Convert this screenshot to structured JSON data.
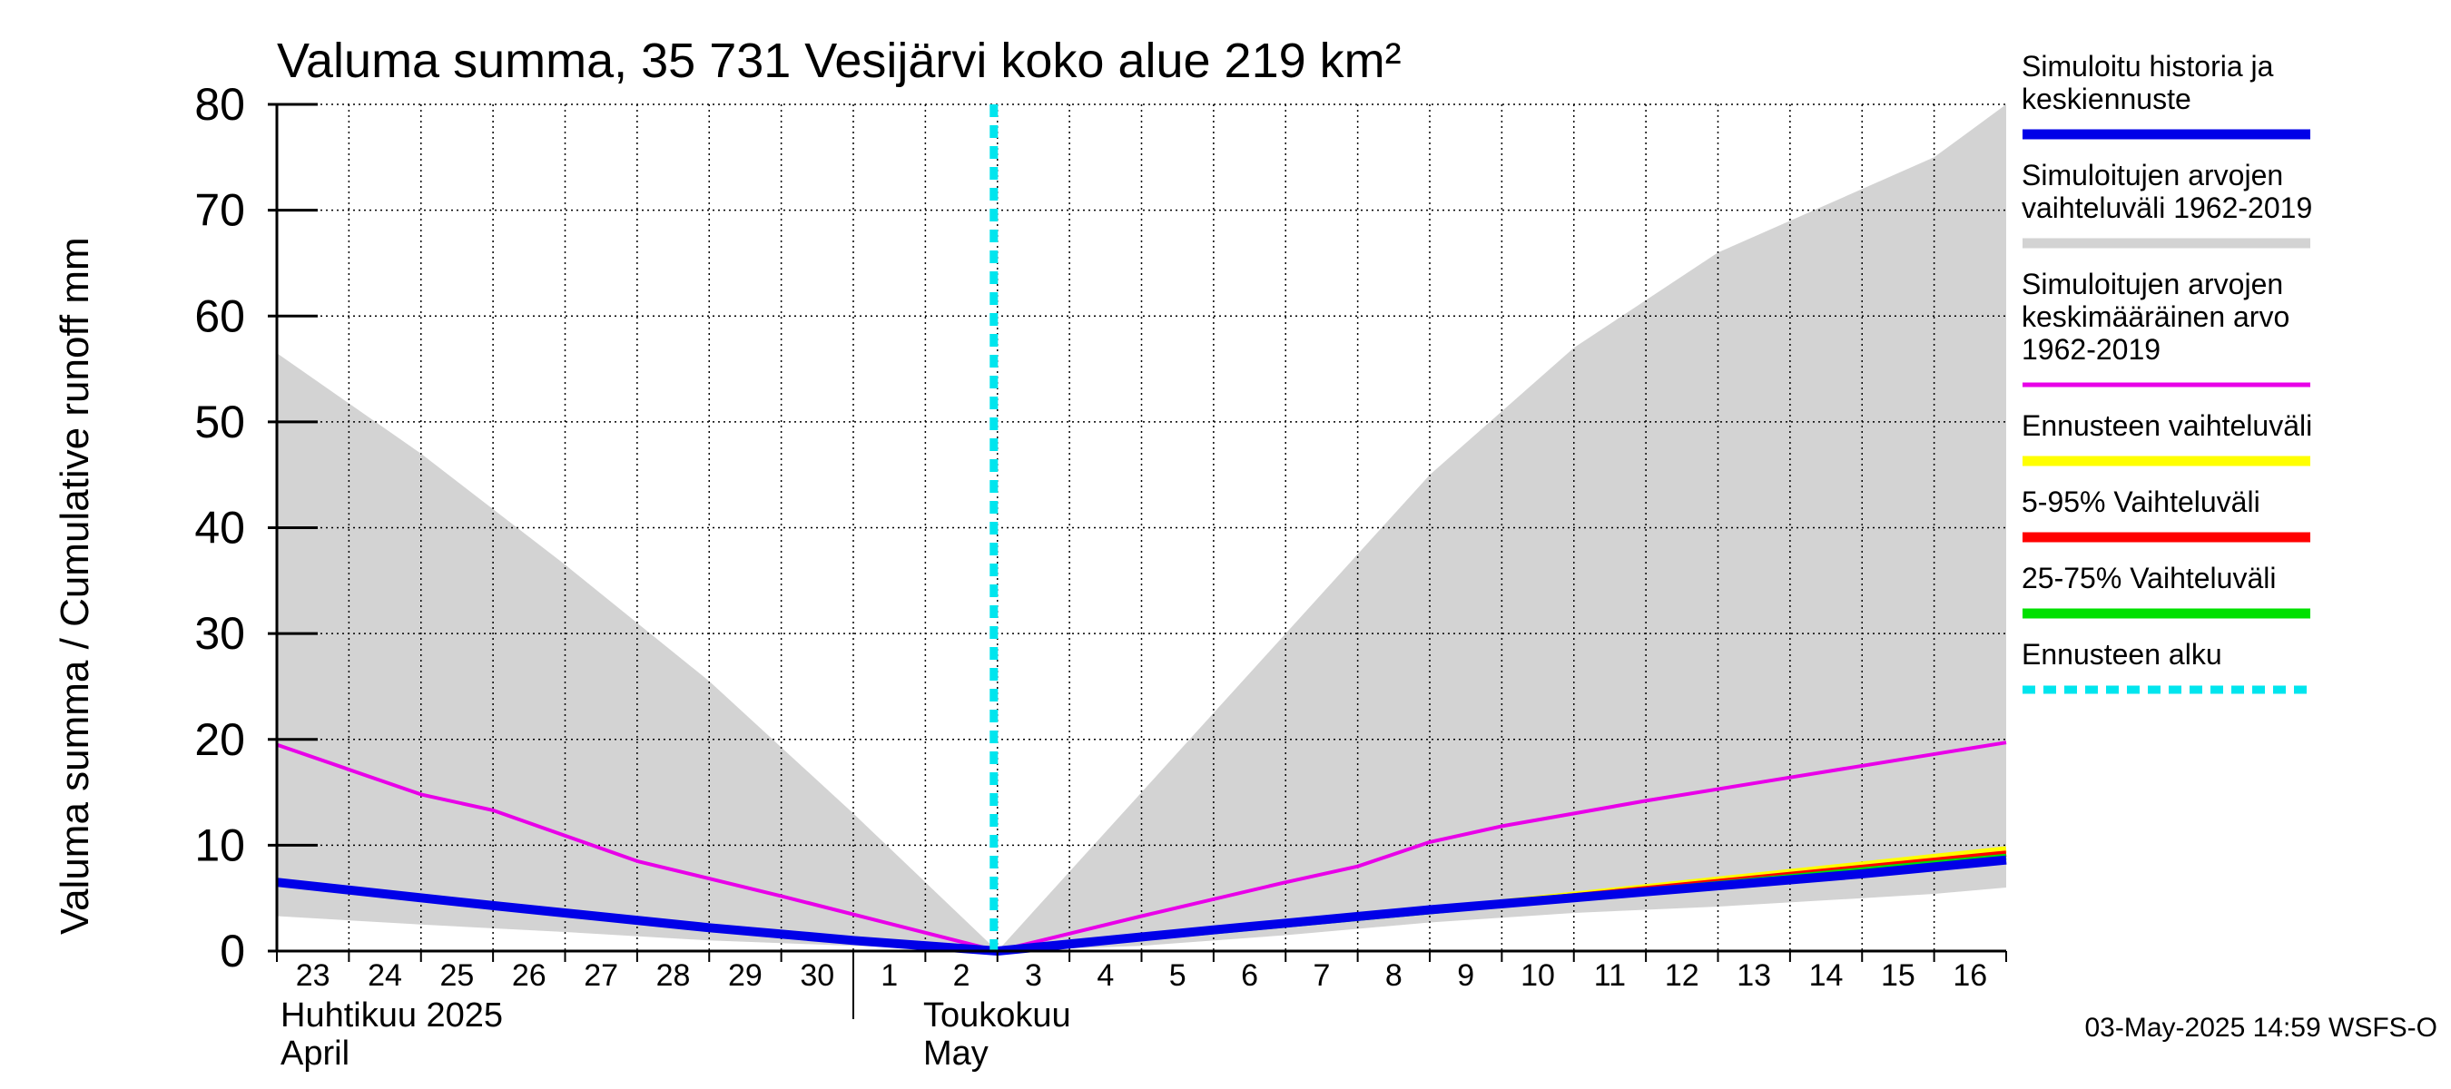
{
  "chart_data": {
    "type": "line",
    "title": "Valuma summa, 35 731 Vesijärvi koko alue 219 km²",
    "ylabel": "Valuma summa / Cumulative runoff    mm",
    "ylim": [
      0,
      80
    ],
    "yticks": [
      0,
      10,
      20,
      30,
      40,
      50,
      60,
      70,
      80
    ],
    "x_day_labels": [
      "23",
      "24",
      "25",
      "26",
      "27",
      "28",
      "29",
      "30",
      "1",
      "2",
      "3",
      "4",
      "5",
      "6",
      "7",
      "8",
      "9",
      "10",
      "11",
      "12",
      "13",
      "14",
      "15",
      "16"
    ],
    "month_labels": {
      "april_fi": "Huhtikuu  2025",
      "april_en": "April",
      "may_fi": "Toukokuu",
      "may_en": "May"
    },
    "forecast_start": "2025-05-03",
    "grid": true,
    "legend_position": "right",
    "series": [
      {
        "name": "Simuloitujen arvojen vaihteluväli 1962-2019",
        "role": "range_band",
        "color": "#d3d3d3",
        "x": [
          "2025-04-23",
          "2025-04-25",
          "2025-04-27",
          "2025-04-29",
          "2025-05-01",
          "2025-05-03",
          "2025-05-05",
          "2025-05-07",
          "2025-05-09",
          "2025-05-11",
          "2025-05-13",
          "2025-05-15",
          "2025-05-16",
          "2025-05-17"
        ],
        "upper": [
          56.5,
          47,
          36.5,
          25.5,
          13,
          0,
          15,
          30,
          45,
          57,
          66,
          72,
          75,
          80
        ],
        "lower": [
          3.3,
          2.5,
          1.8,
          1.0,
          0.5,
          0,
          0.5,
          1.5,
          2.7,
          3.6,
          4.2,
          5.0,
          5.4,
          6.0
        ]
      },
      {
        "name": "Simuloitujen arvojen keskimääräinen arvo 1962-2019",
        "role": "mean",
        "color": "#e800e8",
        "x": [
          "2025-04-23",
          "2025-04-25",
          "2025-04-26",
          "2025-04-28",
          "2025-04-30",
          "2025-05-03",
          "2025-05-05",
          "2025-05-07",
          "2025-05-08",
          "2025-05-09",
          "2025-05-10",
          "2025-05-12",
          "2025-05-14",
          "2025-05-17"
        ],
        "y": [
          19.5,
          14.8,
          13.3,
          8.5,
          5.2,
          0,
          3.3,
          6.5,
          8.0,
          10.3,
          11.8,
          14.2,
          16.4,
          19.7
        ]
      },
      {
        "name": "Ennusteen vaihteluväli",
        "role": "forecast_range",
        "color": "#ffff00",
        "x": [
          "2025-05-03",
          "2025-05-10",
          "2025-05-17"
        ],
        "y": [
          0,
          4.6,
          9.6
        ]
      },
      {
        "name": "5-95% Vaihteluväli",
        "role": "forecast_5_95",
        "color": "#ff0000",
        "x": [
          "2025-05-03",
          "2025-05-10",
          "2025-05-17"
        ],
        "y": [
          0,
          4.5,
          9.2
        ]
      },
      {
        "name": "25-75% Vaihteluväli",
        "role": "forecast_25_75",
        "color": "#00e000",
        "x": [
          "2025-05-03",
          "2025-05-10",
          "2025-05-17"
        ],
        "y": [
          0,
          4.4,
          8.9
        ]
      },
      {
        "name": "Simuloitu historia ja keskiennuste",
        "role": "history_and_median",
        "color": "#0000e8",
        "x": [
          "2025-04-23",
          "2025-04-26",
          "2025-04-29",
          "2025-05-01",
          "2025-05-03",
          "2025-05-06",
          "2025-05-09",
          "2025-05-12",
          "2025-05-15",
          "2025-05-17"
        ],
        "y": [
          6.5,
          4.3,
          2.2,
          1.0,
          0,
          2.0,
          3.9,
          5.6,
          7.3,
          8.6
        ]
      }
    ]
  },
  "legend": {
    "items": [
      {
        "label_lines": [
          "Simuloitu historia ja",
          "keskiennuste"
        ],
        "color": "#0000e8",
        "style": "solid-thick"
      },
      {
        "label_lines": [
          "Simuloitujen arvojen",
          "vaihteluväli 1962-2019"
        ],
        "color": "#d3d3d3",
        "style": "solid-thick"
      },
      {
        "label_lines": [
          "Simuloitujen arvojen",
          "keskimääräinen arvo",
          "   1962-2019"
        ],
        "color": "#e800e8",
        "style": "solid"
      },
      {
        "label_lines": [
          "Ennusteen vaihteluväli"
        ],
        "color": "#ffff00",
        "style": "solid-thick"
      },
      {
        "label_lines": [
          "5-95% Vaihteluväli"
        ],
        "color": "#ff0000",
        "style": "solid-thick"
      },
      {
        "label_lines": [
          "25-75% Vaihteluväli"
        ],
        "color": "#00e000",
        "style": "solid-thick"
      },
      {
        "label_lines": [
          "Ennusteen alku"
        ],
        "color": "#00e5ee",
        "style": "dashed"
      }
    ]
  },
  "footer": {
    "timestamp": "03-May-2025 14:59 WSFS-O"
  }
}
